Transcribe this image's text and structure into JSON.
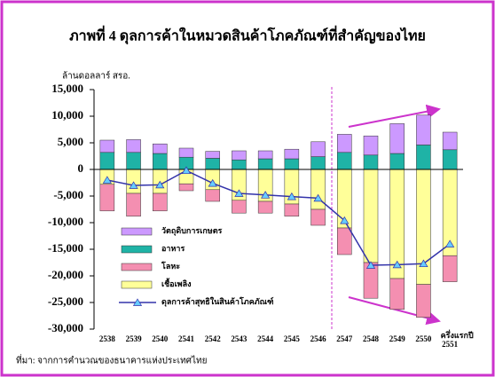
{
  "chart_data": {
    "type": "bar",
    "title": "ภาพที่ 4 ดุลการค้าในหมวดสินค้าโภคภัณฑ์ที่สำคัญของไทย",
    "y_axis_label": "ล้านดอลลาร์ สรอ.",
    "source": "ที่มา: จากการคำนวณของธนาคารแห่งประเทศไทย",
    "categories": [
      "2538",
      "2539",
      "2540",
      "2541",
      "2542",
      "2543",
      "2544",
      "2545",
      "2546",
      "2547",
      "2548",
      "2549",
      "2550",
      "ครึ่งแรกปี 2551"
    ],
    "ylim": [
      -30000,
      15000
    ],
    "yticks": [
      {
        "value": -30000,
        "label": "-30,000"
      },
      {
        "value": -25000,
        "label": "-25,000"
      },
      {
        "value": -20000,
        "label": "-20,000"
      },
      {
        "value": -15000,
        "label": "-15,000"
      },
      {
        "value": -10000,
        "label": "-10,000"
      },
      {
        "value": -5000,
        "label": "-5,000"
      },
      0,
      {
        "value": 5000,
        "label": "5,000"
      },
      {
        "value": 10000,
        "label": "10,000"
      },
      {
        "value": 15000,
        "label": "15,000"
      }
    ],
    "series": [
      {
        "name": "วัตถุดิบการเกษตร",
        "type": "bar",
        "color": "#cc99ff",
        "values": [
          2300,
          2400,
          1800,
          1700,
          1300,
          1700,
          1500,
          1800,
          2800,
          3400,
          3600,
          5600,
          5600,
          3300
        ]
      },
      {
        "name": "อาหาร",
        "type": "bar",
        "color": "#1fb3a6",
        "values": [
          3200,
          3200,
          3000,
          2300,
          2100,
          1800,
          2000,
          2000,
          2400,
          3200,
          2700,
          3000,
          4600,
          3700
        ]
      },
      {
        "name": "โลหะ",
        "type": "bar",
        "color": "#f48fb1",
        "values": [
          -5000,
          -4300,
          -3300,
          -1300,
          -2200,
          -2400,
          -2200,
          -2300,
          -3000,
          -5000,
          -6700,
          -5800,
          -6200,
          -4900
        ]
      },
      {
        "name": "เชื้อเพลิง",
        "type": "bar",
        "color": "#ffff99",
        "values": [
          -2800,
          -4500,
          -4500,
          -2700,
          -3800,
          -5800,
          -6000,
          -6500,
          -7500,
          -11000,
          -17500,
          -20500,
          -21600,
          -16200
        ]
      },
      {
        "name": "ดุลการค้าสุทธิในสินค้าโภคภัณฑ์",
        "type": "line",
        "color": "#3333aa",
        "marker_color": "#66ccff",
        "values": [
          -2000,
          -3000,
          -2900,
          -200,
          -2600,
          -4500,
          -4800,
          -5100,
          -5400,
          -9600,
          -18000,
          -17900,
          -17700,
          -14000
        ]
      }
    ]
  }
}
